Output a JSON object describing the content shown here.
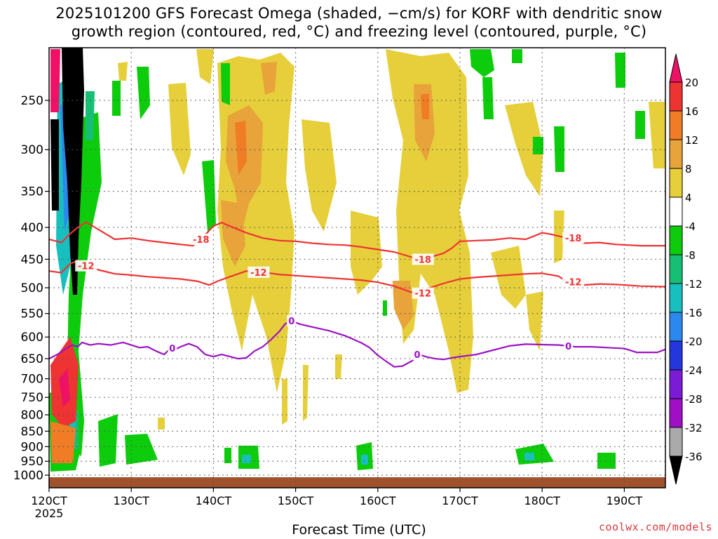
{
  "title_line1": "2025101200 GFS Forecast Omega (shaded, −cm/s) for KORF with dendritic snow",
  "title_line2": "growth region (contoured, red, °C) and freezing level (contoured, purple, °C)",
  "credit": "coolwx.com/models",
  "chart_data": {
    "type": "area",
    "title": "2025101200 GFS Forecast Omega (shaded, −cm/s) for KORF with dendritic snow growth region (contoured, red, °C) and freezing level (contoured, purple, °C)",
    "xlabel": "Forecast Time (UTC)",
    "ylabel": "",
    "xlim": [
      120,
      195
    ],
    "x_unit": "forecast hour",
    "x_ticks": [
      {
        "x": 120,
        "label": "120CT",
        "sub": "2025"
      },
      {
        "x": 130,
        "label": "130CT"
      },
      {
        "x": 140,
        "label": "140CT"
      },
      {
        "x": 150,
        "label": "150CT"
      },
      {
        "x": 160,
        "label": "160CT"
      },
      {
        "x": 170,
        "label": "170CT"
      },
      {
        "x": 180,
        "label": "180CT"
      },
      {
        "x": 190,
        "label": "190CT"
      }
    ],
    "y_scale": "log",
    "ylim": [
      1030,
      200
    ],
    "y_ticks": [
      250,
      300,
      350,
      400,
      450,
      500,
      550,
      600,
      650,
      700,
      750,
      800,
      850,
      900,
      950,
      1000
    ],
    "grid": true,
    "colorbar": {
      "labels": [
        20,
        16,
        12,
        8,
        4,
        -4,
        -8,
        -12,
        -16,
        -20,
        -24,
        -28,
        -32,
        -36
      ],
      "colors": [
        "#ee1166",
        "#ee3333",
        "#f07c25",
        "#e8a33a",
        "#e6cf3a",
        "#ffffff",
        "#0ccc0c",
        "#16bf73",
        "#18bfbf",
        "#2a88ee",
        "#2437dc",
        "#7a1cd6",
        "#a00ec6",
        "#aaaaaa",
        "#000000"
      ]
    },
    "series": [
      {
        "name": "-18",
        "color": "#ee3333",
        "label_positions": [
          138.5,
          165.5,
          183.8
        ],
        "points": [
          [
            120,
            418
          ],
          [
            121.5,
            423
          ],
          [
            122.5,
            410
          ],
          [
            123.5,
            400
          ],
          [
            124.5,
            392
          ],
          [
            126,
            403
          ],
          [
            128,
            418
          ],
          [
            130,
            416
          ],
          [
            132,
            420
          ],
          [
            134,
            423
          ],
          [
            136,
            426
          ],
          [
            137.5,
            428
          ],
          [
            138.5,
            418
          ],
          [
            140,
            398
          ],
          [
            141,
            393
          ],
          [
            142,
            398
          ],
          [
            144,
            408
          ],
          [
            146,
            416
          ],
          [
            148,
            420
          ],
          [
            150,
            421
          ],
          [
            152,
            424
          ],
          [
            154,
            426
          ],
          [
            156,
            427
          ],
          [
            158,
            430
          ],
          [
            160,
            434
          ],
          [
            162,
            438
          ],
          [
            164,
            446
          ],
          [
            165,
            450
          ],
          [
            166,
            448
          ],
          [
            168,
            440
          ],
          [
            169,
            432
          ],
          [
            170,
            421
          ],
          [
            172,
            420
          ],
          [
            174,
            419
          ],
          [
            176,
            416
          ],
          [
            178,
            418
          ],
          [
            180,
            408
          ],
          [
            181,
            410
          ],
          [
            183,
            416
          ],
          [
            185,
            424
          ],
          [
            187,
            423
          ],
          [
            189,
            426
          ],
          [
            192,
            428
          ],
          [
            195,
            428
          ]
        ]
      },
      {
        "name": "-12",
        "color": "#ee3333",
        "label_positions": [
          124.5,
          145.5,
          165.5,
          183.8
        ],
        "points": [
          [
            120,
            470
          ],
          [
            121.5,
            473
          ],
          [
            122.5,
            458
          ],
          [
            123.5,
            452
          ],
          [
            124.5,
            461
          ],
          [
            126,
            468
          ],
          [
            128,
            475
          ],
          [
            130,
            477
          ],
          [
            132,
            480
          ],
          [
            134,
            482
          ],
          [
            136,
            484
          ],
          [
            138,
            488
          ],
          [
            139.5,
            495
          ],
          [
            140.5,
            488
          ],
          [
            142,
            480
          ],
          [
            144,
            470
          ],
          [
            146,
            472
          ],
          [
            148,
            476
          ],
          [
            150,
            478
          ],
          [
            152,
            480
          ],
          [
            154,
            482
          ],
          [
            156,
            484
          ],
          [
            158,
            486
          ],
          [
            160,
            490
          ],
          [
            162,
            497
          ],
          [
            164,
            508
          ],
          [
            165,
            510
          ],
          [
            166,
            502
          ],
          [
            168,
            492
          ],
          [
            170,
            484
          ],
          [
            172,
            481
          ],
          [
            174,
            479
          ],
          [
            176,
            477
          ],
          [
            178,
            475
          ],
          [
            180,
            474
          ],
          [
            182,
            479
          ],
          [
            183,
            489
          ],
          [
            185,
            495
          ],
          [
            187,
            493
          ],
          [
            189,
            494
          ],
          [
            192,
            497
          ],
          [
            195,
            498
          ]
        ]
      },
      {
        "name": "0",
        "color": "#9b14c4",
        "label_positions": [
          135,
          149.5,
          164.8,
          183.2
        ],
        "points": [
          [
            120,
            650
          ],
          [
            121,
            640
          ],
          [
            122,
            627
          ],
          [
            122.8,
            618
          ],
          [
            123.5,
            622
          ],
          [
            124,
            612
          ],
          [
            125,
            618
          ],
          [
            126,
            615
          ],
          [
            127.5,
            618
          ],
          [
            129,
            612
          ],
          [
            130,
            618
          ],
          [
            131,
            624
          ],
          [
            132,
            622
          ],
          [
            133,
            632
          ],
          [
            134,
            640
          ],
          [
            134.8,
            625
          ],
          [
            135.2,
            630
          ],
          [
            136,
            622
          ],
          [
            137,
            615
          ],
          [
            138,
            622
          ],
          [
            139,
            640
          ],
          [
            140,
            645
          ],
          [
            141,
            640
          ],
          [
            142,
            645
          ],
          [
            143,
            650
          ],
          [
            144,
            648
          ],
          [
            145,
            632
          ],
          [
            146,
            622
          ],
          [
            147,
            606
          ],
          [
            148,
            588
          ],
          [
            148.7,
            572
          ],
          [
            149.5,
            565
          ],
          [
            150.5,
            572
          ],
          [
            152,
            578
          ],
          [
            154,
            586
          ],
          [
            156,
            597
          ],
          [
            158,
            613
          ],
          [
            159,
            624
          ],
          [
            160,
            642
          ],
          [
            161,
            656
          ],
          [
            162,
            670
          ],
          [
            163,
            668
          ],
          [
            164.2,
            655
          ],
          [
            165,
            640
          ],
          [
            166,
            646
          ],
          [
            167,
            650
          ],
          [
            168,
            652
          ],
          [
            169,
            648
          ],
          [
            170,
            645
          ],
          [
            172,
            640
          ],
          [
            174,
            630
          ],
          [
            176,
            620
          ],
          [
            178,
            616
          ],
          [
            180,
            617
          ],
          [
            182,
            618
          ],
          [
            183.2,
            620
          ],
          [
            184,
            622
          ],
          [
            186,
            622
          ],
          [
            188,
            624
          ],
          [
            190,
            626
          ],
          [
            191.5,
            635
          ],
          [
            193,
            635
          ],
          [
            194,
            635
          ],
          [
            195,
            628
          ]
        ]
      }
    ]
  }
}
